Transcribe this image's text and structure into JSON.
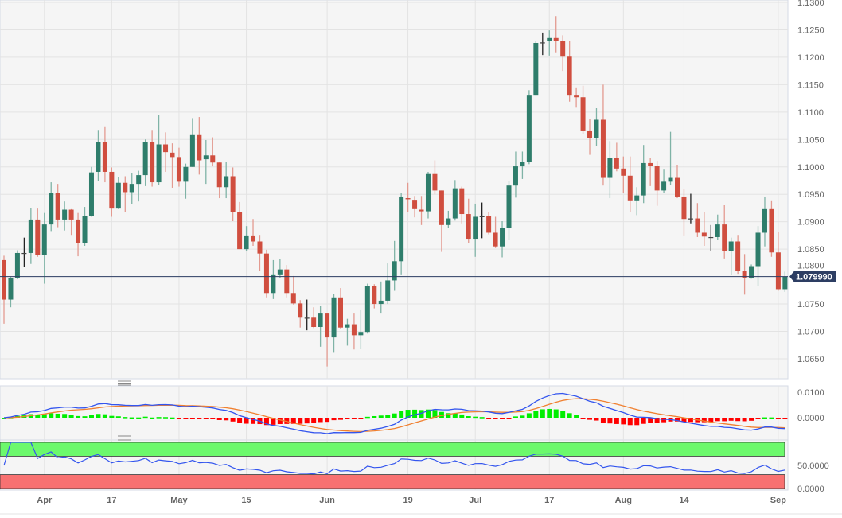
{
  "chart_data": {
    "type": "candlestick",
    "colors": {
      "up": "#2e7d6b",
      "down": "#d04e3f",
      "up_wick": "#7fb3a6",
      "down_wick": "#e39a90",
      "price_line": "#2d3e63",
      "macd": "#3355ee",
      "signal": "#f08030",
      "hist_pos": "#00ee00",
      "hist_neg": "#ff0000",
      "rsi": "#3355ee",
      "rsi_overbought_zone": "#6cf96c",
      "rsi_oversold_zone": "#f87171"
    },
    "price_axis": {
      "ylim": [
        1.062,
        1.1305
      ],
      "ticks": [
        "1.1300",
        "1.1250",
        "1.1200",
        "1.1150",
        "1.1100",
        "1.1050",
        "1.1000",
        "1.0950",
        "1.0900",
        "1.0850",
        "1.0800",
        "1.0750",
        "1.0700",
        "1.0650"
      ],
      "grid": true
    },
    "current_price": {
      "value": 1.07999,
      "label": "1.079990"
    },
    "x_ticks": [
      {
        "label": "Apr",
        "index": 6
      },
      {
        "label": "17",
        "index": 16
      },
      {
        "label": "May",
        "index": 26
      },
      {
        "label": "15",
        "index": 36
      },
      {
        "label": "Jun",
        "index": 48
      },
      {
        "label": "19",
        "index": 60
      },
      {
        "label": "Jul",
        "index": 70
      },
      {
        "label": "17",
        "index": 81
      },
      {
        "label": "Aug",
        "index": 92
      },
      {
        "label": "14",
        "index": 101
      },
      {
        "label": "Sep",
        "index": 115
      }
    ],
    "candles_ohlc": [
      [
        1.083,
        1.0838,
        1.0714,
        1.0758
      ],
      [
        1.0758,
        1.08,
        1.0744,
        1.0797
      ],
      [
        1.0797,
        1.0848,
        1.0795,
        1.0843
      ],
      [
        1.0843,
        1.0871,
        1.0817,
        1.0843
      ],
      [
        1.0843,
        1.0925,
        1.0823,
        1.0904
      ],
      [
        1.0904,
        1.0924,
        1.0836,
        1.0839
      ],
      [
        1.0839,
        1.0916,
        1.0787,
        1.0895
      ],
      [
        1.0895,
        1.0972,
        1.0883,
        1.0952
      ],
      [
        1.0952,
        1.0969,
        1.089,
        1.0904
      ],
      [
        1.0904,
        1.0937,
        1.0884,
        1.0922
      ],
      [
        1.0922,
        1.0923,
        1.0876,
        1.0904
      ],
      [
        1.0904,
        1.0916,
        1.0837,
        1.0861
      ],
      [
        1.0861,
        1.0927,
        1.0856,
        1.0911
      ],
      [
        1.0911,
        1.1,
        1.0909,
        1.099
      ],
      [
        1.0991,
        1.1066,
        1.0975,
        1.1045
      ],
      [
        1.1045,
        1.1074,
        1.0972,
        1.0991
      ],
      [
        1.0991,
        1.0999,
        1.0909,
        1.0924
      ],
      [
        1.0924,
        1.0982,
        1.0923,
        1.0971
      ],
      [
        1.0971,
        1.0983,
        1.0917,
        1.0954
      ],
      [
        1.0954,
        1.0988,
        1.0932,
        1.0969
      ],
      [
        1.0969,
        1.0993,
        1.0937,
        1.0985
      ],
      [
        1.0985,
        1.105,
        1.0965,
        1.1045
      ],
      [
        1.1045,
        1.1066,
        1.0964,
        1.0972
      ],
      [
        1.0972,
        1.1094,
        1.0967,
        1.1041
      ],
      [
        1.1041,
        1.1063,
        1.0991,
        1.1027
      ],
      [
        1.1026,
        1.1043,
        1.0962,
        1.1018
      ],
      [
        1.1018,
        1.1035,
        1.0964,
        1.0973
      ],
      [
        1.0973,
        1.1006,
        1.0942,
        1.1
      ],
      [
        1.1,
        1.1089,
        1.1,
        1.1058
      ],
      [
        1.1058,
        1.1091,
        1.0986,
        1.1012
      ],
      [
        1.1014,
        1.1049,
        1.0969,
        1.1021
      ],
      [
        1.1021,
        1.1054,
        1.1001,
        1.1008
      ],
      [
        1.1008,
        1.1008,
        1.0943,
        1.0963
      ],
      [
        1.0963,
        1.1009,
        1.0943,
        1.0983
      ],
      [
        1.0983,
        1.0999,
        1.0901,
        1.0917
      ],
      [
        1.0917,
        1.0936,
        1.085,
        1.085
      ],
      [
        1.085,
        1.0892,
        1.0847,
        1.0875
      ],
      [
        1.0875,
        1.0905,
        1.0856,
        1.0864
      ],
      [
        1.0864,
        1.0876,
        1.081,
        1.0842
      ],
      [
        1.0842,
        1.0849,
        1.0762,
        1.077
      ],
      [
        1.077,
        1.083,
        1.0759,
        1.0804
      ],
      [
        1.0804,
        1.0832,
        1.0797,
        1.0813
      ],
      [
        1.0813,
        1.0821,
        1.0762,
        1.077
      ],
      [
        1.077,
        1.0801,
        1.0749,
        1.0751
      ],
      [
        1.0751,
        1.0757,
        1.0707,
        1.0725
      ],
      [
        1.0725,
        1.0758,
        1.0702,
        1.0725
      ],
      [
        1.0725,
        1.0744,
        1.0706,
        1.0708
      ],
      [
        1.0708,
        1.0746,
        1.0672,
        1.0734
      ],
      [
        1.0734,
        1.0734,
        1.0636,
        1.0689
      ],
      [
        1.0689,
        1.0768,
        1.0661,
        1.0762
      ],
      [
        1.0762,
        1.0779,
        1.0705,
        1.0707
      ],
      [
        1.0707,
        1.0723,
        1.0674,
        1.0713
      ],
      [
        1.0713,
        1.0734,
        1.0667,
        1.0693
      ],
      [
        1.0693,
        1.074,
        1.0668,
        1.0699
      ],
      [
        1.0699,
        1.0787,
        1.0696,
        1.0782
      ],
      [
        1.0782,
        1.0786,
        1.0742,
        1.075
      ],
      [
        1.075,
        1.0791,
        1.0734,
        1.0756
      ],
      [
        1.0756,
        1.0824,
        1.075,
        1.0793
      ],
      [
        1.0793,
        1.0865,
        1.0774,
        1.0828
      ],
      [
        1.0828,
        1.0953,
        1.0804,
        1.0946
      ],
      [
        1.0943,
        1.0971,
        1.0918,
        1.0941
      ],
      [
        1.094,
        1.0947,
        1.0908,
        1.0923
      ],
      [
        1.0922,
        1.0947,
        1.0894,
        1.0919
      ],
      [
        1.0919,
        1.0991,
        1.0906,
        1.0987
      ],
      [
        1.0987,
        1.1012,
        1.095,
        1.0957
      ],
      [
        1.0957,
        1.0957,
        1.0845,
        1.0894
      ],
      [
        1.0894,
        1.092,
        1.0889,
        1.0906
      ],
      [
        1.0906,
        1.0976,
        1.0902,
        1.0961
      ],
      [
        1.0961,
        1.0964,
        1.0897,
        1.0914
      ],
      [
        1.0914,
        1.0942,
        1.0861,
        1.0869
      ],
      [
        1.0869,
        1.0933,
        1.0836,
        1.0909
      ],
      [
        1.091,
        1.0935,
        1.087,
        1.091
      ],
      [
        1.091,
        1.0917,
        1.0877,
        1.088
      ],
      [
        1.088,
        1.0909,
        1.0852,
        1.0855
      ],
      [
        1.0855,
        1.0901,
        1.0835,
        1.0888
      ],
      [
        1.0888,
        1.0974,
        1.0867,
        1.0966
      ],
      [
        1.0966,
        1.1028,
        1.0944,
        1.1001
      ],
      [
        1.1001,
        1.1028,
        1.0978,
        1.1009
      ],
      [
        1.1009,
        1.114,
        1.1005,
        1.113
      ],
      [
        1.113,
        1.1229,
        1.113,
        1.1226
      ],
      [
        1.1227,
        1.1245,
        1.1204,
        1.1227
      ],
      [
        1.1229,
        1.1249,
        1.1203,
        1.1235
      ],
      [
        1.1235,
        1.1275,
        1.1209,
        1.1229
      ],
      [
        1.1229,
        1.124,
        1.1175,
        1.1201
      ],
      [
        1.1201,
        1.1229,
        1.1119,
        1.113
      ],
      [
        1.113,
        1.1145,
        1.1108,
        1.1127
      ],
      [
        1.1127,
        1.1148,
        1.106,
        1.1065
      ],
      [
        1.1065,
        1.1087,
        1.1022,
        1.1053
      ],
      [
        1.1053,
        1.1107,
        1.1038,
        1.1086
      ],
      [
        1.1086,
        1.115,
        1.0966,
        1.098
      ],
      [
        1.098,
        1.1047,
        1.0943,
        1.1016
      ],
      [
        1.1016,
        1.1044,
        1.0992,
        1.0997
      ],
      [
        1.0997,
        1.1019,
        1.0952,
        1.0984
      ],
      [
        1.0984,
        1.1019,
        1.0918,
        1.0939
      ],
      [
        1.0939,
        1.0963,
        1.0912,
        1.0948
      ],
      [
        1.0948,
        1.104,
        1.0934,
        1.1007
      ],
      [
        1.1007,
        1.1017,
        1.0965,
        1.1002
      ],
      [
        1.1002,
        1.1011,
        1.0929,
        1.0957
      ],
      [
        1.0957,
        1.0995,
        1.0953,
        1.0973
      ],
      [
        1.0973,
        1.1064,
        1.0967,
        1.098
      ],
      [
        1.098,
        1.1004,
        1.0943,
        1.0946
      ],
      [
        1.0946,
        1.0959,
        1.0875,
        1.0905
      ],
      [
        1.0906,
        1.0951,
        1.0897,
        1.0906
      ],
      [
        1.0906,
        1.0934,
        1.0872,
        1.088
      ],
      [
        1.088,
        1.0918,
        1.0856,
        1.0873
      ],
      [
        1.0872,
        1.0894,
        1.0846,
        1.0872
      ],
      [
        1.0872,
        1.0913,
        1.0867,
        1.0895
      ],
      [
        1.0895,
        1.093,
        1.0833,
        1.0846
      ],
      [
        1.0846,
        1.0871,
        1.0803,
        1.0864
      ],
      [
        1.0864,
        1.0876,
        1.0805,
        1.081
      ],
      [
        1.081,
        1.0841,
        1.0767,
        1.0797
      ],
      [
        1.0797,
        1.0822,
        1.0796,
        1.0819
      ],
      [
        1.0819,
        1.0892,
        1.0783,
        1.088
      ],
      [
        1.088,
        1.0946,
        1.0855,
        1.0923
      ],
      [
        1.0923,
        1.0939,
        1.0836,
        1.0844
      ],
      [
        1.0844,
        1.0882,
        1.0774,
        1.0777
      ],
      [
        1.0777,
        1.0809,
        1.0772,
        1.08
      ]
    ],
    "macd_panel": {
      "indicator": "MACD",
      "ticks": [
        "0.0100",
        "0.0000"
      ],
      "ylim": [
        -0.0105,
        0.0128
      ]
    },
    "rsi_panel": {
      "indicator": "RSI",
      "ticks": [
        "50.0000",
        "0.0000"
      ],
      "ylim": [
        0,
        100
      ],
      "overbought": 70,
      "oversold": 30
    }
  }
}
